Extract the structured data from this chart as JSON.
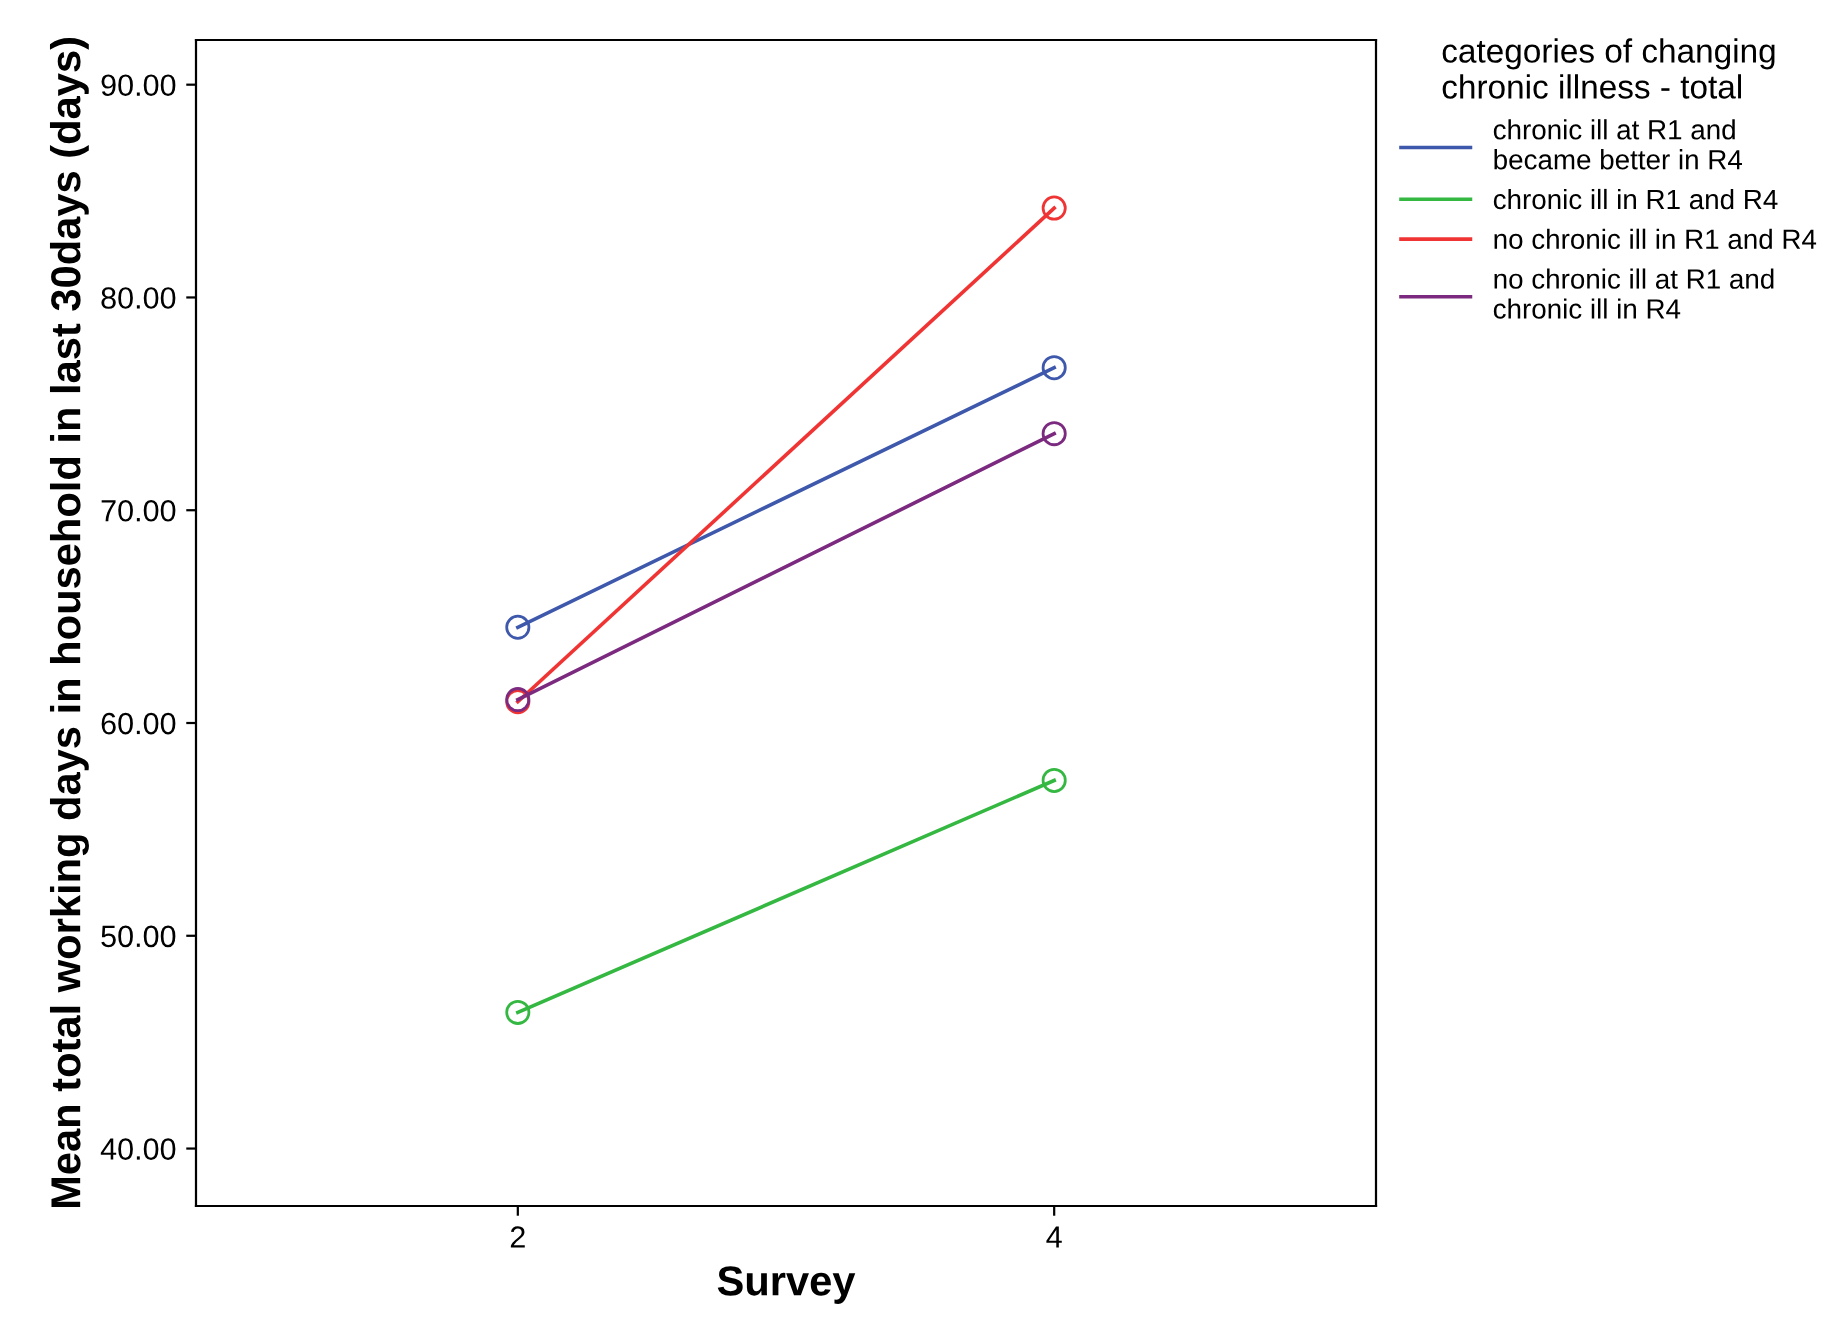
{
  "chart_data": {
    "type": "line",
    "xlabel": "Survey",
    "ylabel": "Mean total working days in household in last 30days (days)",
    "legend_title": "categories of changing\nchronic illness - total",
    "categories": [
      "2",
      "4"
    ],
    "series": [
      {
        "name": "chronic ill at R1 and\nbecame better in R4",
        "color": "#3e58ac",
        "values": [
          64.5,
          76.7
        ]
      },
      {
        "name": "chronic ill in R1 and R4",
        "color": "#35b842",
        "values": [
          46.4,
          57.3
        ]
      },
      {
        "name": "no chronic ill in R1 and R4",
        "color": "#f03434",
        "values": [
          61.0,
          84.2
        ]
      },
      {
        "name": "no chronic ill at R1 and\nchronic ill in R4",
        "color": "#7b2a7f",
        "values": [
          61.1,
          73.6
        ]
      }
    ],
    "ylim": [
      37.3,
      92.1
    ],
    "yticks": [
      {
        "value": 40,
        "label": "40.00"
      },
      {
        "value": 50,
        "label": "50.00"
      },
      {
        "value": 60,
        "label": "60.00"
      },
      {
        "value": 70,
        "label": "70.00"
      },
      {
        "value": 80,
        "label": "80.00"
      },
      {
        "value": 90,
        "label": "90.00"
      }
    ],
    "grid": false,
    "legend": "top right",
    "marker": "circle",
    "line_style": "solid"
  }
}
